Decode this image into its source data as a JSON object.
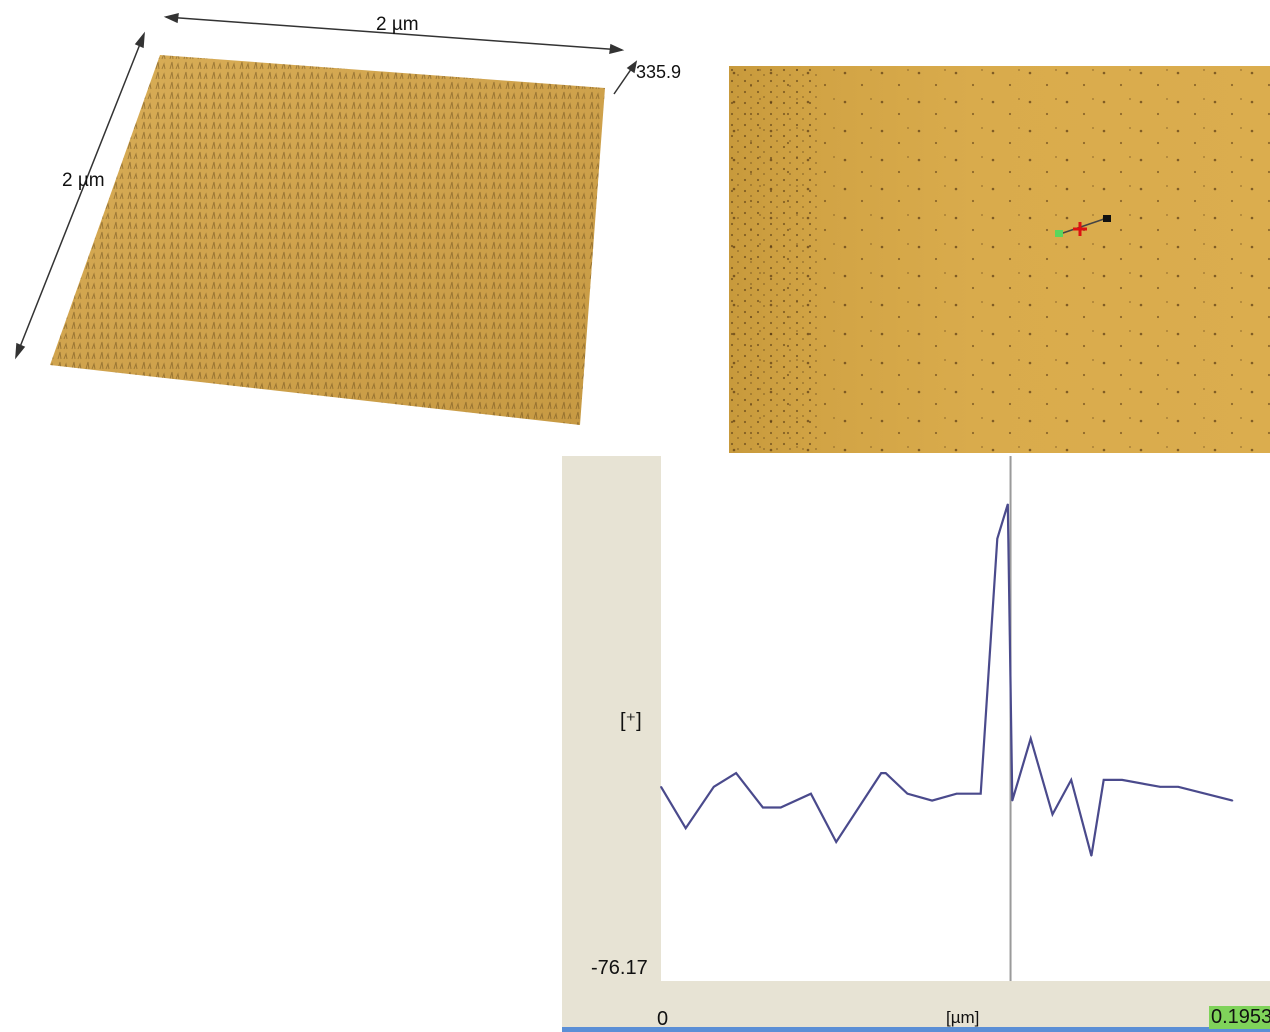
{
  "surface3d": {
    "x_dim_label": "2 µm",
    "y_dim_label": "2 µm",
    "z_max_label": "335.9",
    "colors": {
      "surface_light": "#e1b55a",
      "surface_dark": "#7a5a22",
      "base": "#d4a74d"
    }
  },
  "afm_image": {
    "colors": {
      "background": "#d9ab4c",
      "marker_cross": "#d11",
      "marker_start": "#5cd65c",
      "marker_end": "#111111"
    }
  },
  "profile": {
    "y_unit_label": "[⁺]",
    "y_min_label": "-76.17",
    "x_min_label": "0",
    "x_unit_label": "[µm]",
    "x_max_label": "0.1953",
    "colors": {
      "line": "#4a4a8c",
      "cursor": "#9a9a9a",
      "axis_band": "#e7e3d4",
      "x_max_highlight": "#7fd35a"
    }
  },
  "chart_data": {
    "type": "line",
    "xlim": [
      0,
      0.1953
    ],
    "ylim": [
      -76.17,
      null
    ],
    "xlabel": "[µm]",
    "ylabel": "[⁺]",
    "cursor_x": 0.1159,
    "series": [
      {
        "x": [
          0,
          0.0082,
          0.0175,
          0.0249,
          0.0338,
          0.0397,
          0.0497,
          0.0581,
          0.073,
          0.0745,
          0.0817,
          0.0899,
          0.098,
          0.106,
          0.1115,
          0.115,
          0.1165,
          0.1226,
          0.1298,
          0.136,
          0.1427,
          0.1468,
          0.1529,
          0.1655,
          0.1715,
          0.1895
        ],
        "values": [
          -48,
          -54,
          -48,
          -46,
          -51,
          -51,
          -49,
          -56,
          -46,
          -46,
          -49,
          -50,
          -49,
          -49,
          -12,
          -7,
          -50,
          -41,
          -52,
          -47,
          -58,
          -47,
          -47,
          -48,
          -48,
          -50
        ]
      }
    ]
  }
}
